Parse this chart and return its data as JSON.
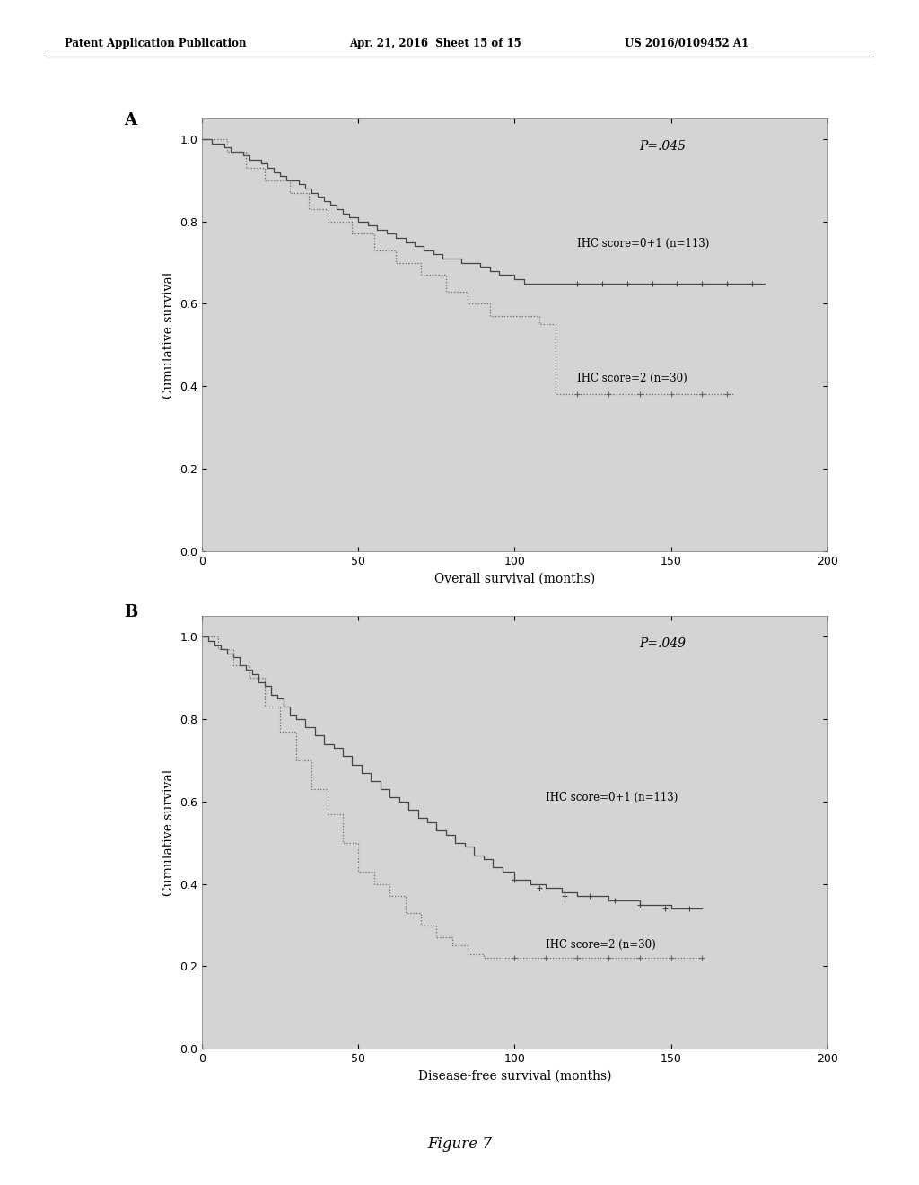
{
  "header_left": "Patent Application Publication",
  "header_mid": "Apr. 21, 2016  Sheet 15 of 15",
  "header_right": "US 2016/0109452 A1",
  "figure_label": "Figure 7",
  "background_color": "#ffffff",
  "plot_bg_color": "#d4d4d4",
  "panel_A": {
    "label": "A",
    "xlabel": "Overall survival (months)",
    "ylabel": "Cumulative survival",
    "xlim": [
      0,
      200
    ],
    "ylim": [
      0.0,
      1.05
    ],
    "xticks": [
      0,
      50,
      100,
      150,
      200
    ],
    "yticks": [
      0.0,
      0.2,
      0.4,
      0.6,
      0.8,
      1.0
    ],
    "pvalue": "P=.045",
    "curve1_label": "IHC score=0+1 (n=113)",
    "curve2_label": "IHC score=2 (n=30)",
    "curve1_x": [
      0,
      3,
      5,
      7,
      9,
      11,
      13,
      15,
      17,
      19,
      21,
      23,
      25,
      27,
      29,
      31,
      33,
      35,
      37,
      39,
      41,
      43,
      45,
      47,
      50,
      53,
      56,
      59,
      62,
      65,
      68,
      71,
      74,
      77,
      80,
      83,
      86,
      89,
      92,
      95,
      98,
      100,
      103,
      110,
      120,
      130,
      140,
      150,
      160,
      170,
      180
    ],
    "curve1_y": [
      1.0,
      0.99,
      0.99,
      0.98,
      0.97,
      0.97,
      0.96,
      0.95,
      0.95,
      0.94,
      0.93,
      0.92,
      0.91,
      0.9,
      0.9,
      0.89,
      0.88,
      0.87,
      0.86,
      0.85,
      0.84,
      0.83,
      0.82,
      0.81,
      0.8,
      0.79,
      0.78,
      0.77,
      0.76,
      0.75,
      0.74,
      0.73,
      0.72,
      0.71,
      0.71,
      0.7,
      0.7,
      0.69,
      0.68,
      0.67,
      0.67,
      0.66,
      0.65,
      0.65,
      0.65,
      0.65,
      0.65,
      0.65,
      0.65,
      0.65,
      0.65
    ],
    "curve1_censor_x": [
      120,
      128,
      136,
      144,
      152,
      160,
      168,
      176
    ],
    "curve1_censor_y": [
      0.65,
      0.65,
      0.65,
      0.65,
      0.65,
      0.65,
      0.65,
      0.65
    ],
    "curve2_x": [
      0,
      8,
      14,
      20,
      28,
      34,
      40,
      48,
      55,
      62,
      70,
      78,
      85,
      92,
      100,
      108,
      113,
      120,
      130,
      140,
      150,
      160,
      170
    ],
    "curve2_y": [
      1.0,
      0.97,
      0.93,
      0.9,
      0.87,
      0.83,
      0.8,
      0.77,
      0.73,
      0.7,
      0.67,
      0.63,
      0.6,
      0.57,
      0.57,
      0.55,
      0.38,
      0.38,
      0.38,
      0.38,
      0.38,
      0.38,
      0.38
    ],
    "curve2_censor_x": [
      120,
      130,
      140,
      150,
      160,
      168
    ],
    "curve2_censor_y": [
      0.38,
      0.38,
      0.38,
      0.38,
      0.38,
      0.38
    ]
  },
  "panel_B": {
    "label": "B",
    "xlabel": "Disease-free survival (months)",
    "ylabel": "Cumulative survival",
    "xlim": [
      0,
      200
    ],
    "ylim": [
      0.0,
      1.05
    ],
    "xticks": [
      0,
      50,
      100,
      150,
      200
    ],
    "yticks": [
      0.0,
      0.2,
      0.4,
      0.6,
      0.8,
      1.0
    ],
    "pvalue": "P=.049",
    "curve1_label": "IHC score=0+1 (n=113)",
    "curve2_label": "IHC score=2 (n=30)",
    "curve1_x": [
      0,
      2,
      4,
      6,
      8,
      10,
      12,
      14,
      16,
      18,
      20,
      22,
      24,
      26,
      28,
      30,
      33,
      36,
      39,
      42,
      45,
      48,
      51,
      54,
      57,
      60,
      63,
      66,
      69,
      72,
      75,
      78,
      81,
      84,
      87,
      90,
      93,
      96,
      100,
      105,
      110,
      115,
      120,
      125,
      130,
      135,
      140,
      145,
      150,
      155,
      160
    ],
    "curve1_y": [
      1.0,
      0.99,
      0.98,
      0.97,
      0.96,
      0.95,
      0.93,
      0.92,
      0.91,
      0.89,
      0.88,
      0.86,
      0.85,
      0.83,
      0.81,
      0.8,
      0.78,
      0.76,
      0.74,
      0.73,
      0.71,
      0.69,
      0.67,
      0.65,
      0.63,
      0.61,
      0.6,
      0.58,
      0.56,
      0.55,
      0.53,
      0.52,
      0.5,
      0.49,
      0.47,
      0.46,
      0.44,
      0.43,
      0.41,
      0.4,
      0.39,
      0.38,
      0.37,
      0.37,
      0.36,
      0.36,
      0.35,
      0.35,
      0.34,
      0.34,
      0.34
    ],
    "curve1_censor_x": [
      100,
      108,
      116,
      124,
      132,
      140,
      148,
      156
    ],
    "curve1_censor_y": [
      0.41,
      0.39,
      0.37,
      0.37,
      0.36,
      0.35,
      0.34,
      0.34
    ],
    "curve2_x": [
      0,
      5,
      10,
      15,
      20,
      25,
      30,
      35,
      40,
      45,
      50,
      55,
      60,
      65,
      70,
      75,
      80,
      85,
      90,
      95,
      100,
      120,
      140,
      160
    ],
    "curve2_y": [
      1.0,
      0.97,
      0.93,
      0.9,
      0.83,
      0.77,
      0.7,
      0.63,
      0.57,
      0.5,
      0.43,
      0.4,
      0.37,
      0.33,
      0.3,
      0.27,
      0.25,
      0.23,
      0.22,
      0.22,
      0.22,
      0.22,
      0.22,
      0.22
    ],
    "curve2_censor_x": [
      100,
      110,
      120,
      130,
      140,
      150,
      160
    ],
    "curve2_censor_y": [
      0.22,
      0.22,
      0.22,
      0.22,
      0.22,
      0.22,
      0.22
    ]
  }
}
